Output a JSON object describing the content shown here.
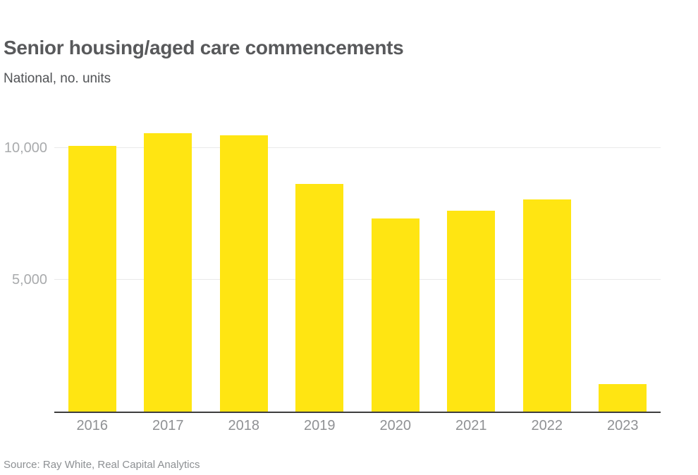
{
  "header": {
    "title": "Senior housing/aged care commencements",
    "subtitle": "National, no. units"
  },
  "footer": {
    "source": "Source: Ray White, Real Capital Analytics"
  },
  "colors": {
    "bar": "#ffe512",
    "title_text": "#58595b",
    "axis_line": "#3d3d3d",
    "gridline": "#eaeaea",
    "tick_text": "#8f9194",
    "background": "#ffffff"
  },
  "chart_data": {
    "type": "bar",
    "title": "Senior housing/aged care commencements",
    "subtitle": "National, no. units",
    "categories": [
      "2016",
      "2017",
      "2018",
      "2019",
      "2020",
      "2021",
      "2022",
      "2023"
    ],
    "values": [
      10080,
      10570,
      10480,
      8640,
      7330,
      7610,
      8040,
      1050
    ],
    "xlabel": "",
    "ylabel": "no. units",
    "ylim": [
      0,
      11070
    ],
    "yticks": [
      {
        "value": 5000,
        "label": "5,000"
      },
      {
        "value": 10000,
        "label": "10,000"
      }
    ],
    "grid": "horizontal",
    "legend": "none",
    "bar_color": "#ffe512",
    "source": "Source: Ray White, Real Capital Analytics"
  }
}
